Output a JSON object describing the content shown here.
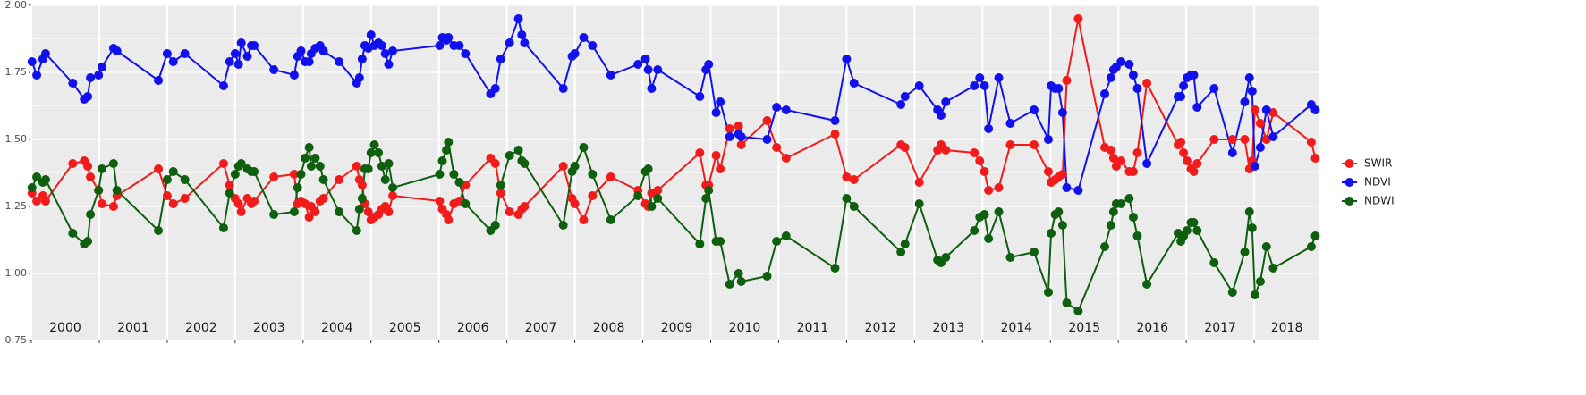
{
  "chart_data": {
    "type": "line",
    "x": [
      2000.01,
      2000.08,
      2000.17,
      2000.21,
      2000.61,
      2000.78,
      2000.83,
      2000.87,
      2000.99,
      2001.04,
      2001.21,
      2001.26,
      2001.87,
      2002.0,
      2002.09,
      2002.26,
      2002.83,
      2002.92,
      2003.0,
      2003.05,
      2003.09,
      2003.18,
      2003.24,
      2003.28,
      2003.57,
      2003.87,
      2003.92,
      2003.97,
      2004.03,
      2004.09,
      2004.12,
      2004.18,
      2004.25,
      2004.3,
      2004.53,
      2004.79,
      2004.83,
      2004.87,
      2004.91,
      2004.96,
      2005.0,
      2005.05,
      2005.11,
      2005.16,
      2005.21,
      2005.26,
      2005.32,
      2006.01,
      2006.05,
      2006.11,
      2006.14,
      2006.22,
      2006.3,
      2006.39,
      2006.76,
      2006.83,
      2006.91,
      2007.04,
      2007.17,
      2007.22,
      2007.26,
      2007.83,
      2007.96,
      2008.0,
      2008.13,
      2008.26,
      2008.53,
      2008.93,
      2009.04,
      2009.08,
      2009.13,
      2009.22,
      2009.84,
      2009.93,
      2009.97,
      2010.08,
      2010.14,
      2010.28,
      2010.41,
      2010.45,
      2010.83,
      2010.97,
      2011.11,
      2011.83,
      2012.0,
      2012.11,
      2012.8,
      2012.86,
      2013.07,
      2013.34,
      2013.39,
      2013.46,
      2013.88,
      2013.96,
      2014.03,
      2014.09,
      2014.24,
      2014.41,
      2014.76,
      2014.97,
      2015.01,
      2015.07,
      2015.12,
      2015.18,
      2015.24,
      2015.41,
      2015.8,
      2015.89,
      2015.93,
      2015.97,
      2016.04,
      2016.16,
      2016.22,
      2016.28,
      2016.42,
      2016.88,
      2016.92,
      2016.96,
      2017.01,
      2017.07,
      2017.11,
      2017.16,
      2017.41,
      2017.68,
      2017.86,
      2017.93,
      2017.97,
      2018.01,
      2018.09,
      2018.18,
      2018.28,
      2018.84,
      2018.9
    ],
    "series": [
      {
        "name": "SWIR",
        "color": "#f21b1b",
        "values": [
          1.3,
          1.27,
          1.29,
          1.27,
          1.41,
          1.42,
          1.4,
          1.36,
          1.31,
          1.26,
          1.25,
          1.29,
          1.39,
          1.29,
          1.26,
          1.28,
          1.41,
          1.33,
          1.28,
          1.26,
          1.23,
          1.28,
          1.26,
          1.27,
          1.36,
          1.37,
          1.26,
          1.27,
          1.26,
          1.21,
          1.25,
          1.23,
          1.27,
          1.28,
          1.35,
          1.4,
          1.35,
          1.33,
          1.26,
          1.23,
          1.2,
          1.21,
          1.22,
          1.24,
          1.25,
          1.23,
          1.29,
          1.27,
          1.24,
          1.22,
          1.2,
          1.26,
          1.27,
          1.33,
          1.43,
          1.41,
          1.3,
          1.23,
          1.22,
          1.24,
          1.25,
          1.4,
          1.28,
          1.26,
          1.2,
          1.29,
          1.36,
          1.31,
          1.26,
          1.25,
          1.3,
          1.31,
          1.45,
          1.33,
          1.33,
          1.44,
          1.39,
          1.54,
          1.55,
          1.48,
          1.57,
          1.47,
          1.43,
          1.52,
          1.36,
          1.35,
          1.48,
          1.47,
          1.34,
          1.46,
          1.48,
          1.46,
          1.45,
          1.42,
          1.38,
          1.31,
          1.32,
          1.48,
          1.48,
          1.38,
          1.34,
          1.35,
          1.36,
          1.37,
          1.72,
          1.95,
          1.47,
          1.46,
          1.43,
          1.4,
          1.42,
          1.38,
          1.38,
          1.45,
          1.71,
          1.48,
          1.49,
          1.45,
          1.42,
          1.39,
          1.38,
          1.41,
          1.5,
          1.5,
          1.5,
          1.39,
          1.42,
          1.61,
          1.56,
          1.5,
          1.6,
          1.49,
          1.43
        ]
      },
      {
        "name": "NDVI",
        "color": "#1111ee",
        "values": [
          1.79,
          1.74,
          1.8,
          1.82,
          1.71,
          1.65,
          1.66,
          1.73,
          1.74,
          1.77,
          1.84,
          1.83,
          1.72,
          1.82,
          1.79,
          1.82,
          1.7,
          1.79,
          1.82,
          1.78,
          1.86,
          1.81,
          1.85,
          1.85,
          1.76,
          1.74,
          1.81,
          1.83,
          1.79,
          1.79,
          1.82,
          1.84,
          1.85,
          1.83,
          1.79,
          1.71,
          1.73,
          1.8,
          1.85,
          1.84,
          1.89,
          1.85,
          1.86,
          1.85,
          1.82,
          1.78,
          1.83,
          1.85,
          1.88,
          1.87,
          1.88,
          1.85,
          1.85,
          1.82,
          1.67,
          1.69,
          1.8,
          1.86,
          1.95,
          1.89,
          1.86,
          1.69,
          1.81,
          1.82,
          1.88,
          1.85,
          1.74,
          1.78,
          1.8,
          1.76,
          1.69,
          1.76,
          1.66,
          1.76,
          1.78,
          1.6,
          1.64,
          1.51,
          1.52,
          1.51,
          1.5,
          1.62,
          1.61,
          1.57,
          1.8,
          1.71,
          1.63,
          1.66,
          1.7,
          1.61,
          1.59,
          1.64,
          1.7,
          1.73,
          1.7,
          1.54,
          1.73,
          1.56,
          1.61,
          1.5,
          1.7,
          1.69,
          1.69,
          1.6,
          1.32,
          1.31,
          1.67,
          1.73,
          1.76,
          1.77,
          1.79,
          1.78,
          1.74,
          1.69,
          1.41,
          1.66,
          1.66,
          1.7,
          1.73,
          1.74,
          1.74,
          1.62,
          1.69,
          1.45,
          1.64,
          1.73,
          1.68,
          1.4,
          1.47,
          1.61,
          1.51,
          1.63,
          1.61
        ]
      },
      {
        "name": "NDWI",
        "color": "#0e5f0e",
        "values": [
          1.32,
          1.36,
          1.34,
          1.35,
          1.15,
          1.11,
          1.12,
          1.22,
          1.31,
          1.39,
          1.41,
          1.31,
          1.16,
          1.35,
          1.38,
          1.35,
          1.17,
          1.3,
          1.37,
          1.4,
          1.41,
          1.39,
          1.38,
          1.38,
          1.22,
          1.23,
          1.32,
          1.37,
          1.43,
          1.47,
          1.4,
          1.43,
          1.4,
          1.35,
          1.23,
          1.16,
          1.24,
          1.28,
          1.39,
          1.39,
          1.45,
          1.48,
          1.45,
          1.4,
          1.35,
          1.41,
          1.32,
          1.37,
          1.42,
          1.46,
          1.49,
          1.37,
          1.34,
          1.26,
          1.16,
          1.18,
          1.33,
          1.44,
          1.46,
          1.42,
          1.41,
          1.18,
          1.38,
          1.4,
          1.47,
          1.37,
          1.2,
          1.29,
          1.38,
          1.39,
          1.25,
          1.28,
          1.11,
          1.28,
          1.31,
          1.12,
          1.12,
          0.96,
          1.0,
          0.97,
          0.99,
          1.12,
          1.14,
          1.02,
          1.28,
          1.25,
          1.08,
          1.11,
          1.26,
          1.05,
          1.04,
          1.06,
          1.16,
          1.21,
          1.22,
          1.13,
          1.23,
          1.06,
          1.08,
          0.93,
          1.15,
          1.22,
          1.23,
          1.18,
          0.89,
          0.86,
          1.1,
          1.18,
          1.23,
          1.26,
          1.26,
          1.28,
          1.21,
          1.14,
          0.96,
          1.15,
          1.12,
          1.14,
          1.16,
          1.19,
          1.19,
          1.16,
          1.04,
          0.93,
          1.08,
          1.23,
          1.17,
          0.92,
          0.97,
          1.1,
          1.02,
          1.1,
          1.14
        ]
      }
    ],
    "xlim": [
      2000,
      2018.96
    ],
    "xticks": [
      2000,
      2001,
      2002,
      2003,
      2004,
      2005,
      2006,
      2007,
      2008,
      2009,
      2010,
      2011,
      2012,
      2013,
      2014,
      2015,
      2016,
      2017,
      2018
    ],
    "year_labels": [
      "2000",
      "2001",
      "2002",
      "2003",
      "2004",
      "2005",
      "2006",
      "2007",
      "2008",
      "2009",
      "2010",
      "2011",
      "2012",
      "2013",
      "2014",
      "2015",
      "2016",
      "2017",
      "2018"
    ],
    "ylim": [
      0.75,
      2
    ],
    "yticks": [
      0.75,
      {
        "value": 1,
        "label": "1.00"
      },
      1.25,
      {
        "value": 1.5,
        "label": "1.50"
      },
      1.75,
      {
        "value": 2,
        "label": "2.00"
      }
    ],
    "grid": true,
    "legend": "right"
  }
}
